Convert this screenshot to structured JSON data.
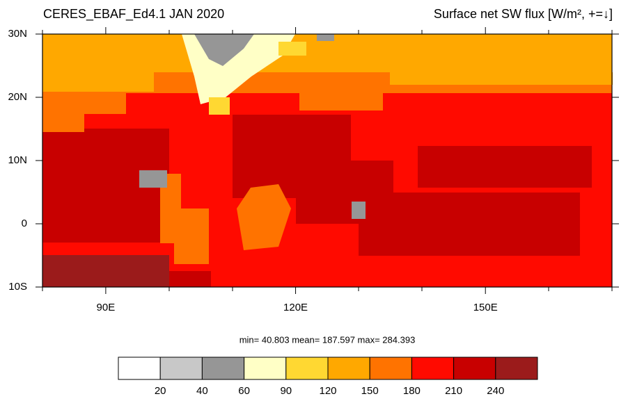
{
  "chart_data": {
    "type": "map",
    "title_left": "CERES_EBAF_Ed4.1 JAN 2020",
    "title_right": "Surface net SW flux [W/m², +=↓]",
    "xlim": [
      80,
      170
    ],
    "ylim": [
      -10,
      30
    ],
    "xticks": [
      {
        "value": 90,
        "label": "90E"
      },
      {
        "value": 120,
        "label": "120E"
      },
      {
        "value": 150,
        "label": "150E"
      }
    ],
    "yticks": [
      {
        "value": 30,
        "label": "30N"
      },
      {
        "value": 20,
        "label": "20N"
      },
      {
        "value": 10,
        "label": "10N"
      },
      {
        "value": 0,
        "label": "0"
      },
      {
        "value": -10,
        "label": "10S"
      }
    ],
    "stats": "min=  40.803  mean= 187.597  max= 284.393",
    "colorbar": {
      "levels": [
        20,
        40,
        60,
        90,
        120,
        150,
        180,
        210,
        240
      ],
      "colors": [
        "#ffffff",
        "#c8c8c8",
        "#969696",
        "#ffffc6",
        "#ffd832",
        "#ffa800",
        "#ff7300",
        "#ff0a00",
        "#c80000",
        "#9b1b1b"
      ]
    }
  }
}
